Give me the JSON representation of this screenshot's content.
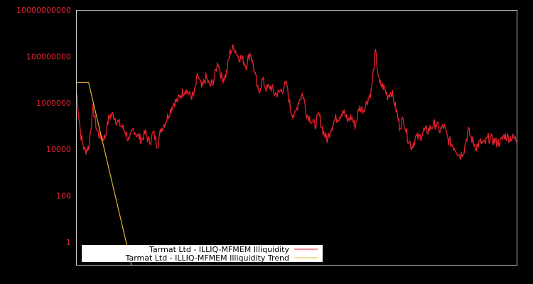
{
  "chart_data": {
    "type": "line",
    "title": "",
    "xlabel": "",
    "ylabel": "",
    "y_scale": "log",
    "ylim": [
      0.08,
      10000000000
    ],
    "y_ticks": [
      {
        "label": "10000000000",
        "value": 10000000000
      },
      {
        "label": "100000000",
        "value": 100000000
      },
      {
        "label": "1000000",
        "value": 1000000
      },
      {
        "label": "10000",
        "value": 10000
      },
      {
        "label": "100",
        "value": 100
      },
      {
        "label": "1",
        "value": 1
      }
    ],
    "x_ticks": [],
    "grid": false,
    "legend_position": "lower-left",
    "series": [
      {
        "name": "Tarmat Ltd - ILLIQ-MFMEM Illiquidity",
        "color": "#e8212e",
        "x_norm_step": 0.01,
        "log10_values": [
          6.4,
          4.6,
          3.9,
          4.1,
          5.8,
          4.8,
          4.5,
          4.5,
          5.4,
          5.5,
          5.2,
          5.0,
          4.8,
          4.3,
          4.9,
          4.6,
          4.4,
          4.7,
          4.3,
          4.7,
          4.2,
          4.9,
          5.2,
          5.6,
          6.0,
          6.1,
          6.4,
          6.6,
          6.3,
          6.3,
          7.2,
          6.6,
          7.1,
          6.7,
          7.0,
          7.8,
          7.0,
          7.2,
          8.2,
          8.4,
          8.0,
          7.9,
          7.6,
          8.2,
          7.4,
          6.4,
          7.0,
          6.6,
          6.7,
          6.4,
          6.4,
          6.6,
          6.8,
          5.7,
          5.4,
          6.1,
          6.4,
          5.5,
          5.3,
          5.0,
          5.5,
          4.8,
          4.4,
          4.9,
          5.3,
          5.4,
          5.7,
          5.2,
          5.4,
          5.0,
          5.8,
          5.7,
          6.1,
          6.5,
          8.2,
          6.8,
          6.7,
          6.3,
          6.5,
          5.8,
          5.0,
          5.3,
          4.5,
          4.1,
          4.5,
          4.5,
          4.8,
          4.8,
          5.0,
          5.1,
          4.8,
          5.0,
          4.4,
          4.2,
          4.0,
          3.7,
          4.0,
          4.8,
          4.4,
          4.1,
          4.3,
          4.2,
          4.5,
          4.4,
          4.3,
          4.3,
          4.6,
          4.5,
          4.5,
          4.4
        ]
      },
      {
        "name": "Tarmat Ltd - ILLIQ-MFMEM Illiquidity Trend",
        "color": "#e3b728",
        "points_norm": [
          [
            0.0,
            6.87
          ],
          [
            0.027,
            6.87
          ],
          [
            0.126,
            -1.1
          ]
        ]
      }
    ]
  },
  "legend": {
    "items": [
      {
        "label": "Tarmat Ltd - ILLIQ-MFMEM Illiquidity",
        "color": "#e8212e"
      },
      {
        "label": "Tarmat Ltd - ILLIQ-MFMEM Illiquidity Trend",
        "color": "#e3b728"
      }
    ]
  },
  "colors": {
    "background": "#000000",
    "frame": "#c8c8c8",
    "tick_text": "#e8212e",
    "legend_bg": "#ffffff"
  }
}
